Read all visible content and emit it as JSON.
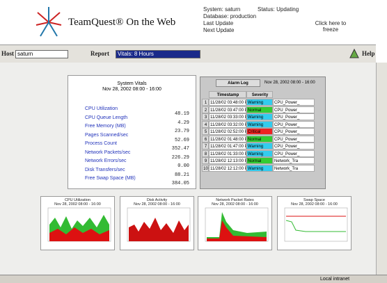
{
  "header": {
    "logo_text": "TeamQuest® On the Web",
    "system": "System: saturn",
    "status": "Status: Updating",
    "database": "Database: production",
    "last_update": "Last Update",
    "next_update": "Next Update",
    "freeze": "Click here to freeze"
  },
  "toolbar": {
    "host_label": "Host",
    "host": "saturn",
    "report_label": "Report",
    "report": "Vitals: 8 Hours",
    "help": "Help"
  },
  "vitals": {
    "title": "System Vitals",
    "period": "Nov 28, 2002 08:00 - 16:00",
    "rows": [
      [
        "CPU Utilization",
        "48.19"
      ],
      [
        "CPU Queue Length",
        "4.29"
      ],
      [
        "Free Memory (MB)",
        "23.79"
      ],
      [
        "Pages Scanned/sec",
        "52.69"
      ],
      [
        "Process Count",
        "352.47"
      ],
      [
        "Network Packets/sec",
        "226.29"
      ],
      [
        "Network Errors/sec",
        "0.00"
      ],
      [
        "Disk Transfers/sec",
        "88.21"
      ],
      [
        "Free Swap Space (MB)",
        "384.05"
      ]
    ]
  },
  "alarm_log": {
    "title": "Alarm Log",
    "period": "Nov 28, 2002 08:00 - 16:00",
    "columns": [
      "Timestamp",
      "Severity"
    ],
    "severity_colors": {
      "Warning": "#33ccee",
      "Normal": "#33cc33",
      "Critical": "#ee2222"
    },
    "rows": [
      [
        "1",
        "11/28/02 03:48:00 PM",
        "Warning",
        "CPU_Power_"
      ],
      [
        "2",
        "11/28/02 03:47:00 PM",
        "Normal",
        "CPU_Power_"
      ],
      [
        "3",
        "11/28/02 03:33:00 PM",
        "Warning",
        "CPU_Power_"
      ],
      [
        "4",
        "11/28/02 03:32:00 PM",
        "Warning",
        "CPU_Power_"
      ],
      [
        "5",
        "11/28/02 02:52:00 PM",
        "Critical",
        "CPU_Power_"
      ],
      [
        "6",
        "11/28/02 01:48:00 PM",
        "Normal",
        "CPU_Power_"
      ],
      [
        "7",
        "11/28/02 01:47:00 PM",
        "Warning",
        "CPU_Power_"
      ],
      [
        "8",
        "11/28/02 01:33:00 PM",
        "Warning",
        "CPU_Power_"
      ],
      [
        "9",
        "11/28/02 12:13:00 PM",
        "Normal",
        "Network_Tra"
      ],
      [
        "10",
        "11/28/02 12:12:00 PM",
        "Warning",
        "Network_Tra"
      ]
    ]
  },
  "graphs": [
    {
      "title": "CPU Utilization",
      "period": "Nov 28, 2002 08:00 - 16:00"
    },
    {
      "title": "Disk Activity",
      "period": "Nov 28, 2002 08:00 - 16:00"
    },
    {
      "title": "Network Packet Rates",
      "period": "Nov 28, 2002 08:00 - 16:00"
    },
    {
      "title": "Swap Space",
      "period": "Nov 28, 2002 08:00 - 16:00"
    }
  ],
  "status_bar": {
    "zone": "Local intranet"
  }
}
